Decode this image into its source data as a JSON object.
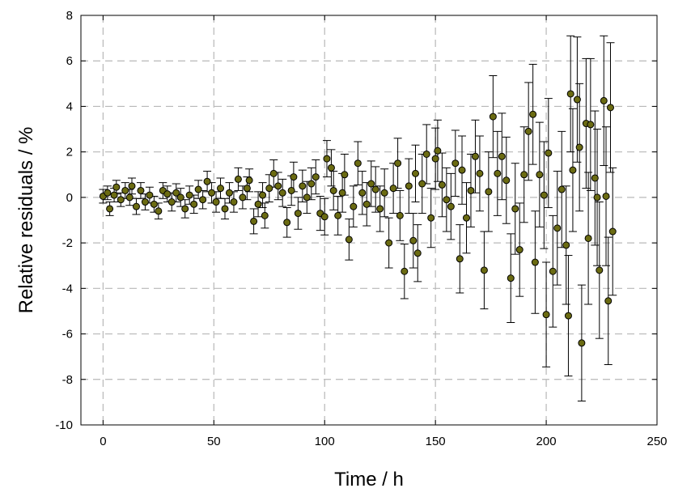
{
  "chart_data": {
    "type": "scatter",
    "title": "",
    "xlabel": "Time /  h",
    "ylabel": "Relative residuals / %",
    "xlim": [
      -10,
      250
    ],
    "ylim": [
      -10,
      8
    ],
    "xticks": [
      0,
      50,
      100,
      150,
      200,
      250
    ],
    "yticks": [
      -10,
      -8,
      -6,
      -4,
      -2,
      0,
      2,
      4,
      6,
      8
    ],
    "grid": true,
    "legend": "none",
    "marker_color": "#6b6b12",
    "series": [
      {
        "points": [
          {
            "x": 0,
            "y": 0.05,
            "err": 0.3
          },
          {
            "x": 2,
            "y": 0.2,
            "err": 0.3
          },
          {
            "x": 3,
            "y": -0.5,
            "err": 0.3
          },
          {
            "x": 5,
            "y": 0.1,
            "err": 0.3
          },
          {
            "x": 6,
            "y": 0.45,
            "err": 0.3
          },
          {
            "x": 8,
            "y": -0.1,
            "err": 0.3
          },
          {
            "x": 10,
            "y": 0.3,
            "err": 0.35
          },
          {
            "x": 12,
            "y": 0.0,
            "err": 0.35
          },
          {
            "x": 13,
            "y": 0.5,
            "err": 0.35
          },
          {
            "x": 15,
            "y": -0.4,
            "err": 0.35
          },
          {
            "x": 17,
            "y": 0.3,
            "err": 0.35
          },
          {
            "x": 19,
            "y": -0.2,
            "err": 0.35
          },
          {
            "x": 21,
            "y": 0.1,
            "err": 0.35
          },
          {
            "x": 23,
            "y": -0.3,
            "err": 0.35
          },
          {
            "x": 25,
            "y": -0.6,
            "err": 0.35
          },
          {
            "x": 27,
            "y": 0.3,
            "err": 0.35
          },
          {
            "x": 29,
            "y": 0.15,
            "err": 0.35
          },
          {
            "x": 31,
            "y": -0.2,
            "err": 0.4
          },
          {
            "x": 33,
            "y": 0.2,
            "err": 0.4
          },
          {
            "x": 35,
            "y": 0.0,
            "err": 0.4
          },
          {
            "x": 37,
            "y": -0.5,
            "err": 0.4
          },
          {
            "x": 39,
            "y": 0.1,
            "err": 0.4
          },
          {
            "x": 41,
            "y": -0.3,
            "err": 0.4
          },
          {
            "x": 43,
            "y": 0.35,
            "err": 0.4
          },
          {
            "x": 45,
            "y": -0.1,
            "err": 0.4
          },
          {
            "x": 47,
            "y": 0.7,
            "err": 0.45
          },
          {
            "x": 49,
            "y": 0.2,
            "err": 0.45
          },
          {
            "x": 51,
            "y": -0.2,
            "err": 0.45
          },
          {
            "x": 53,
            "y": 0.4,
            "err": 0.45
          },
          {
            "x": 55,
            "y": -0.5,
            "err": 0.45
          },
          {
            "x": 57,
            "y": 0.2,
            "err": 0.45
          },
          {
            "x": 59,
            "y": -0.2,
            "err": 0.45
          },
          {
            "x": 61,
            "y": 0.8,
            "err": 0.5
          },
          {
            "x": 63,
            "y": 0.0,
            "err": 0.5
          },
          {
            "x": 65,
            "y": 0.4,
            "err": 0.5
          },
          {
            "x": 66,
            "y": 0.75,
            "err": 0.5
          },
          {
            "x": 68,
            "y": -1.05,
            "err": 0.55
          },
          {
            "x": 70,
            "y": -0.3,
            "err": 0.55
          },
          {
            "x": 72,
            "y": 0.1,
            "err": 0.55
          },
          {
            "x": 73,
            "y": -0.8,
            "err": 0.55
          },
          {
            "x": 75,
            "y": 0.4,
            "err": 0.6
          },
          {
            "x": 77,
            "y": 1.05,
            "err": 0.6
          },
          {
            "x": 79,
            "y": 0.5,
            "err": 0.6
          },
          {
            "x": 81,
            "y": 0.2,
            "err": 0.6
          },
          {
            "x": 83,
            "y": -1.1,
            "err": 0.65
          },
          {
            "x": 85,
            "y": 0.3,
            "err": 0.65
          },
          {
            "x": 86,
            "y": 0.9,
            "err": 0.65
          },
          {
            "x": 88,
            "y": -0.7,
            "err": 0.7
          },
          {
            "x": 90,
            "y": 0.5,
            "err": 0.7
          },
          {
            "x": 92,
            "y": 0.0,
            "err": 0.7
          },
          {
            "x": 94,
            "y": 0.6,
            "err": 0.7
          },
          {
            "x": 96,
            "y": 0.9,
            "err": 0.75
          },
          {
            "x": 98,
            "y": -0.7,
            "err": 0.75
          },
          {
            "x": 100,
            "y": -0.85,
            "err": 0.8
          },
          {
            "x": 101,
            "y": 1.7,
            "err": 0.8
          },
          {
            "x": 103,
            "y": 1.3,
            "err": 0.8
          },
          {
            "x": 104,
            "y": 0.3,
            "err": 0.85
          },
          {
            "x": 106,
            "y": -0.8,
            "err": 0.85
          },
          {
            "x": 108,
            "y": 0.2,
            "err": 0.85
          },
          {
            "x": 109,
            "y": 1.0,
            "err": 0.9
          },
          {
            "x": 111,
            "y": -1.85,
            "err": 0.9
          },
          {
            "x": 113,
            "y": -0.4,
            "err": 0.9
          },
          {
            "x": 115,
            "y": 1.5,
            "err": 0.95
          },
          {
            "x": 117,
            "y": 0.2,
            "err": 0.95
          },
          {
            "x": 119,
            "y": -0.3,
            "err": 0.95
          },
          {
            "x": 121,
            "y": 0.6,
            "err": 1.0
          },
          {
            "x": 123,
            "y": 0.35,
            "err": 1.0
          },
          {
            "x": 125,
            "y": -0.5,
            "err": 1.0
          },
          {
            "x": 127,
            "y": 0.2,
            "err": 1.05
          },
          {
            "x": 129,
            "y": -2.0,
            "err": 1.1
          },
          {
            "x": 131,
            "y": 0.4,
            "err": 1.1
          },
          {
            "x": 133,
            "y": 1.5,
            "err": 1.1
          },
          {
            "x": 134,
            "y": -0.8,
            "err": 1.1
          },
          {
            "x": 136,
            "y": -3.25,
            "err": 1.2
          },
          {
            "x": 138,
            "y": 0.5,
            "err": 1.2
          },
          {
            "x": 140,
            "y": -1.9,
            "err": 1.2
          },
          {
            "x": 141,
            "y": 1.05,
            "err": 1.25
          },
          {
            "x": 142,
            "y": -2.45,
            "err": 1.25
          },
          {
            "x": 144,
            "y": 0.6,
            "err": 1.3
          },
          {
            "x": 146,
            "y": 1.9,
            "err": 1.3
          },
          {
            "x": 148,
            "y": -0.9,
            "err": 1.3
          },
          {
            "x": 150,
            "y": 1.7,
            "err": 1.35
          },
          {
            "x": 151,
            "y": 2.05,
            "err": 1.35
          },
          {
            "x": 153,
            "y": 0.55,
            "err": 1.4
          },
          {
            "x": 155,
            "y": -0.1,
            "err": 1.4
          },
          {
            "x": 157,
            "y": -0.4,
            "err": 1.45
          },
          {
            "x": 159,
            "y": 1.5,
            "err": 1.45
          },
          {
            "x": 161,
            "y": -2.7,
            "err": 1.5
          },
          {
            "x": 162,
            "y": 1.2,
            "err": 1.5
          },
          {
            "x": 164,
            "y": -0.9,
            "err": 1.55
          },
          {
            "x": 166,
            "y": 0.3,
            "err": 1.6
          },
          {
            "x": 168,
            "y": 1.8,
            "err": 1.6
          },
          {
            "x": 170,
            "y": 1.05,
            "err": 1.65
          },
          {
            "x": 172,
            "y": -3.2,
            "err": 1.7
          },
          {
            "x": 174,
            "y": 0.25,
            "err": 1.75
          },
          {
            "x": 176,
            "y": 3.55,
            "err": 1.8
          },
          {
            "x": 178,
            "y": 1.05,
            "err": 1.85
          },
          {
            "x": 180,
            "y": 1.8,
            "err": 1.9
          },
          {
            "x": 182,
            "y": 0.75,
            "err": 1.9
          },
          {
            "x": 184,
            "y": -3.55,
            "err": 1.95
          },
          {
            "x": 186,
            "y": -0.5,
            "err": 2.0
          },
          {
            "x": 188,
            "y": -2.3,
            "err": 2.05
          },
          {
            "x": 190,
            "y": 1.0,
            "err": 2.1
          },
          {
            "x": 192,
            "y": 2.9,
            "err": 2.15
          },
          {
            "x": 194,
            "y": 3.65,
            "err": 2.2
          },
          {
            "x": 195,
            "y": -2.85,
            "err": 2.25
          },
          {
            "x": 197,
            "y": 1.0,
            "err": 2.3
          },
          {
            "x": 199,
            "y": 0.1,
            "err": 2.35
          },
          {
            "x": 200,
            "y": -5.15,
            "err": 2.3
          },
          {
            "x": 201,
            "y": 1.95,
            "err": 2.4
          },
          {
            "x": 203,
            "y": -3.25,
            "err": 2.45
          },
          {
            "x": 205,
            "y": -1.35,
            "err": 2.5
          },
          {
            "x": 207,
            "y": 0.35,
            "err": 2.55
          },
          {
            "x": 209,
            "y": -2.1,
            "err": 2.6
          },
          {
            "x": 210,
            "y": -5.2,
            "err": 2.65
          },
          {
            "x": 211,
            "y": 4.55,
            "err": 2.55
          },
          {
            "x": 212,
            "y": 1.2,
            "err": 2.7
          },
          {
            "x": 214,
            "y": 4.3,
            "err": 2.75
          },
          {
            "x": 215,
            "y": 2.2,
            "err": 2.8
          },
          {
            "x": 216,
            "y": -6.4,
            "err": 2.55
          },
          {
            "x": 218,
            "y": 3.25,
            "err": 2.85
          },
          {
            "x": 219,
            "y": -1.8,
            "err": 2.9
          },
          {
            "x": 220,
            "y": 3.2,
            "err": 2.9
          },
          {
            "x": 222,
            "y": 0.85,
            "err": 2.95
          },
          {
            "x": 223,
            "y": 0.0,
            "err": 3.0
          },
          {
            "x": 224,
            "y": -3.2,
            "err": 3.0
          },
          {
            "x": 226,
            "y": 4.25,
            "err": 2.85
          },
          {
            "x": 227,
            "y": 0.05,
            "err": 3.05
          },
          {
            "x": 228,
            "y": -4.55,
            "err": 2.8
          },
          {
            "x": 229,
            "y": 3.95,
            "err": 2.85
          },
          {
            "x": 230,
            "y": -1.5,
            "err": 2.8
          }
        ]
      }
    ]
  }
}
